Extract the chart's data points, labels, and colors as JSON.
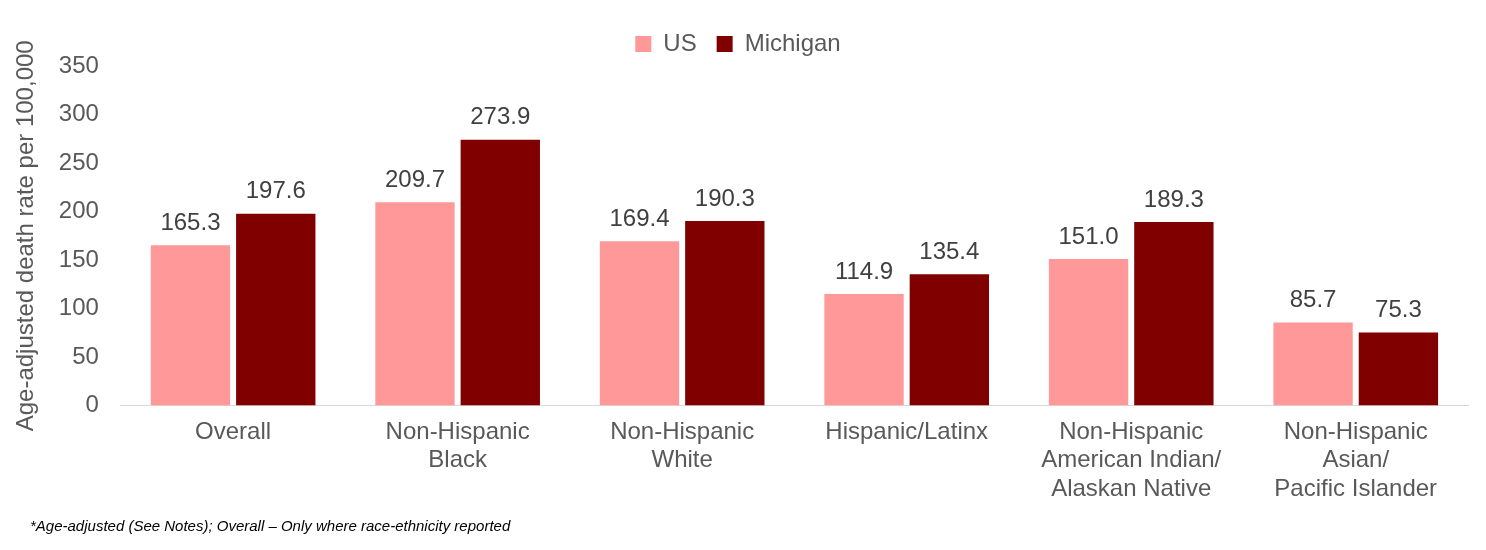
{
  "chart_data": {
    "type": "bar",
    "ylabel": "Age-adjusted death rate per 100,000",
    "categories": [
      "Overall",
      "Non-Hispanic Black",
      "Non-Hispanic White",
      "Hispanic/Latinx",
      "Non-Hispanic American Indian/ Alaskan Native",
      "Non-Hispanic Asian/ Pacific Islander"
    ],
    "series": [
      {
        "name": "US",
        "color": "#ff9999",
        "values": [
          165.3,
          209.7,
          169.4,
          114.9,
          151.0,
          85.7
        ],
        "value_labels": [
          "165.3",
          "209.7",
          "169.4",
          "114.9",
          "151.0",
          "85.7"
        ]
      },
      {
        "name": "Michigan",
        "color": "#800000",
        "values": [
          197.6,
          273.9,
          190.3,
          135.4,
          189.3,
          75.3
        ],
        "value_labels": [
          "197.6",
          "273.9",
          "190.3",
          "135.4",
          "189.3",
          "75.3"
        ]
      }
    ],
    "ylim": [
      0,
      350
    ],
    "yticks": [
      0,
      50,
      100,
      150,
      200,
      250,
      300,
      350
    ],
    "grid": false,
    "legend": "top",
    "annotations": [
      "*Age-adjusted (See Notes); Overall – Only where race-ethnicity reported"
    ]
  }
}
